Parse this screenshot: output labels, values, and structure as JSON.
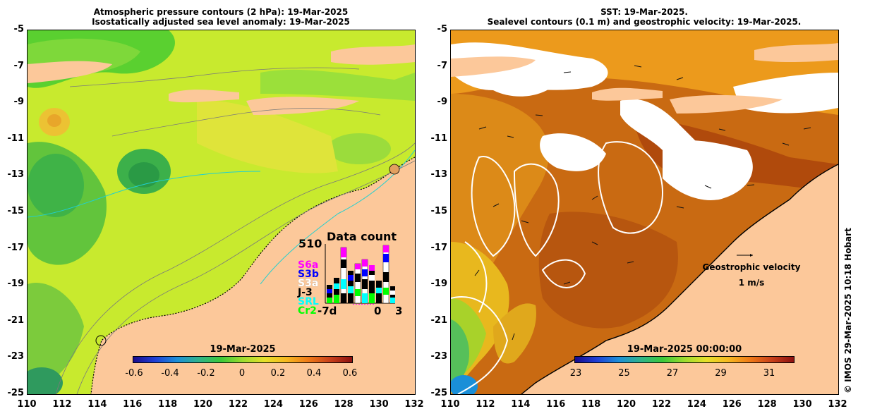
{
  "left_panel": {
    "title_line1": "Atmospheric pressure contours (2 hPa): 19-Mar-2025",
    "title_line2": "Isostatically adjusted sea level anomaly: 19-Mar-2025",
    "colorbar": {
      "date": "19-Mar-2025",
      "ticks": [
        "-0.6",
        "-0.4",
        "-0.2",
        "0",
        "0.2",
        "0.4",
        "0.6"
      ]
    },
    "inset": {
      "title": "Data count",
      "max_label": "510",
      "x_labels": [
        "-7d",
        "0",
        "3"
      ],
      "missions": [
        {
          "label": "S6a",
          "color": "#ff00ff"
        },
        {
          "label": "S3b",
          "color": "#0000ff"
        },
        {
          "label": "S3a",
          "color": "#ffffff"
        },
        {
          "label": "J-3",
          "color": "#000000"
        },
        {
          "label": "SRL",
          "color": "#00ffff"
        },
        {
          "label": "Cr2",
          "color": "#00ff00"
        }
      ]
    }
  },
  "right_panel": {
    "title_line1": "SST: 19-Mar-2025.",
    "title_line2": "Sealevel contours (0.1 m) and geostrophic velocity: 19-Mar-2025.",
    "colorbar": {
      "date": "19-Mar-2025 00:00:00",
      "ticks": [
        "23",
        "25",
        "27",
        "29",
        "31"
      ]
    },
    "velocity_label": "Geostrophic velocity",
    "velocity_scale": "1 m/s"
  },
  "axes": {
    "lat_ticks": [
      "-5",
      "-7",
      "-9",
      "-11",
      "-13",
      "-15",
      "-17",
      "-19",
      "-21",
      "-23",
      "-25"
    ],
    "lon_ticks": [
      "110",
      "112",
      "114",
      "116",
      "118",
      "120",
      "122",
      "124",
      "126",
      "128",
      "130",
      "132"
    ]
  },
  "credit": "© IMOS 29-Mar-2025 10:18 Hobart",
  "colors": {
    "land": "#fcc89a",
    "sla_background": "#c8ea2e",
    "sst_background": "#c96a12"
  }
}
